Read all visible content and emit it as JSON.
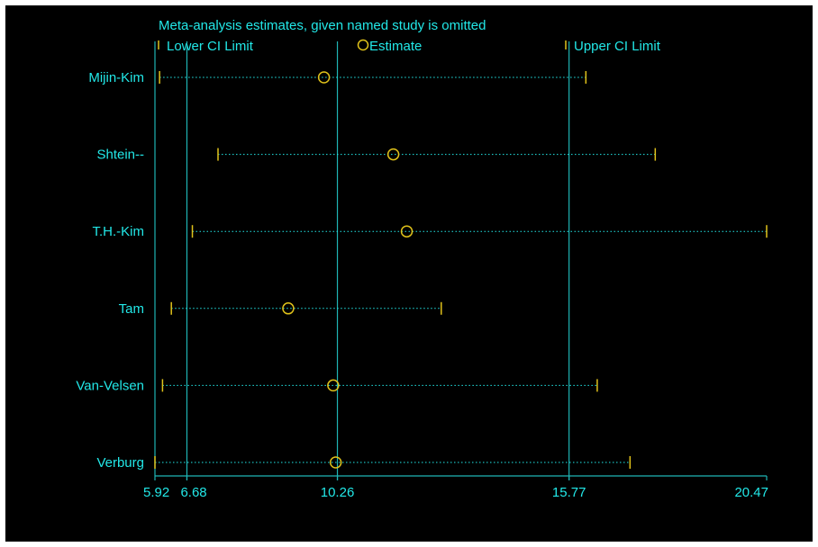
{
  "chart_data": {
    "type": "forest",
    "title": "Meta-analysis estimates, given named study is omitted",
    "legend": {
      "position": "top",
      "items": [
        {
          "key": "lower",
          "label": "Lower CI Limit",
          "marker": "tick"
        },
        {
          "key": "estimate",
          "label": "Estimate",
          "marker": "circle"
        },
        {
          "key": "upper",
          "label": "Upper CI Limit",
          "marker": "tick"
        }
      ]
    },
    "x_ticks": [
      {
        "value": 5.92,
        "label": "5.92"
      },
      {
        "value": 6.68,
        "label": "6.68"
      },
      {
        "value": 10.26,
        "label": "10.26"
      },
      {
        "value": 15.77,
        "label": "15.77"
      },
      {
        "value": 20.47,
        "label": "20.47"
      }
    ],
    "reference_lines": [
      6.68,
      10.26,
      15.77
    ],
    "xlim": [
      5.92,
      20.47
    ],
    "studies": [
      {
        "name": "Mijin-Kim",
        "lower": 6.03,
        "estimate": 9.94,
        "upper": 16.17
      },
      {
        "name": "Shtein--",
        "lower": 7.42,
        "estimate": 11.59,
        "upper": 17.82
      },
      {
        "name": "T.H.-Kim",
        "lower": 6.81,
        "estimate": 11.91,
        "upper": 20.47
      },
      {
        "name": "Tam",
        "lower": 6.31,
        "estimate": 9.09,
        "upper": 12.73
      },
      {
        "name": "Van-Velsen",
        "lower": 6.1,
        "estimate": 10.16,
        "upper": 16.44
      },
      {
        "name": "Verburg",
        "lower": 5.92,
        "estimate": 10.22,
        "upper": 17.22
      }
    ],
    "colors": {
      "background": "#000000",
      "axis": "#1fb5b5",
      "text": "#22e8e8",
      "marker": "#e0c21a"
    }
  }
}
